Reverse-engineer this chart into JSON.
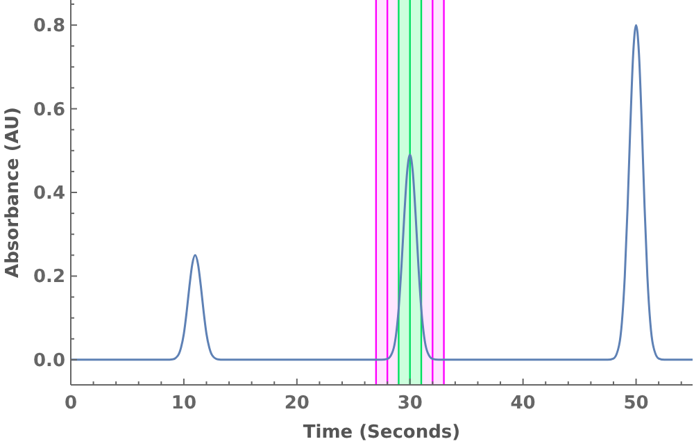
{
  "chart_data": {
    "type": "line",
    "xlabel": "Time  (Seconds)",
    "ylabel": "Absorbance  (AU)",
    "x": [
      0,
      8.5,
      9,
      9.5,
      9.75,
      10,
      10.25,
      10.5,
      10.75,
      11,
      11.25,
      11.5,
      11.75,
      12,
      12.25,
      12.5,
      13,
      13.5,
      27.5,
      28,
      28.5,
      28.75,
      29,
      29.25,
      29.5,
      29.75,
      30,
      30.25,
      30.5,
      30.75,
      31,
      31.25,
      31.5,
      32,
      32.5,
      47.5,
      48,
      48.5,
      48.75,
      49,
      49.25,
      49.5,
      49.75,
      50,
      50.25,
      50.5,
      50.75,
      51,
      51.25,
      51.5,
      52,
      52.5,
      55
    ],
    "series": [
      {
        "color": "#5e81b5",
        "values": [
          0,
          0,
          0.001,
          0.011,
          0.029,
          0.062,
          0.115,
          0.177,
          0.229,
          0.25,
          0.229,
          0.177,
          0.115,
          0.062,
          0.029,
          0.011,
          0.001,
          0,
          0,
          0.002,
          0.022,
          0.056,
          0.122,
          0.224,
          0.346,
          0.449,
          0.49,
          0.449,
          0.346,
          0.224,
          0.122,
          0.056,
          0.022,
          0.002,
          0,
          0,
          0.003,
          0.035,
          0.091,
          0.199,
          0.366,
          0.566,
          0.734,
          0.8,
          0.734,
          0.566,
          0.366,
          0.199,
          0.091,
          0.035,
          0.003,
          0,
          0
        ]
      }
    ],
    "xlim": [
      0,
      55
    ],
    "ylim": [
      -0.06,
      0.86
    ],
    "xticks": [
      0,
      {
        "value": 2,
        "label": null
      },
      {
        "value": 4,
        "label": null
      },
      {
        "value": 6,
        "label": null
      },
      {
        "value": 8,
        "label": null
      },
      10,
      {
        "value": 12,
        "label": null
      },
      {
        "value": 14,
        "label": null
      },
      {
        "value": 16,
        "label": null
      },
      {
        "value": 18,
        "label": null
      },
      20,
      {
        "value": 22,
        "label": null
      },
      {
        "value": 24,
        "label": null
      },
      {
        "value": 26,
        "label": null
      },
      {
        "value": 28,
        "label": null
      },
      30,
      {
        "value": 32,
        "label": null
      },
      {
        "value": 34,
        "label": null
      },
      {
        "value": 36,
        "label": null
      },
      {
        "value": 38,
        "label": null
      },
      40,
      {
        "value": 42,
        "label": null
      },
      {
        "value": 44,
        "label": null
      },
      {
        "value": 46,
        "label": null
      },
      {
        "value": 48,
        "label": null
      },
      50,
      {
        "value": 52,
        "label": null
      },
      {
        "value": 54,
        "label": null
      }
    ],
    "yticks": [
      {
        "value": 0,
        "label": "0.0"
      },
      {
        "value": 0.05,
        "label": null
      },
      {
        "value": 0.1,
        "label": null
      },
      {
        "value": 0.15,
        "label": null
      },
      {
        "value": 0.2,
        "label": "0.2"
      },
      {
        "value": 0.25,
        "label": null
      },
      {
        "value": 0.3,
        "label": null
      },
      {
        "value": 0.35,
        "label": null
      },
      {
        "value": 0.4,
        "label": "0.4"
      },
      {
        "value": 0.45,
        "label": null
      },
      {
        "value": 0.5,
        "label": null
      },
      {
        "value": 0.55,
        "label": null
      },
      {
        "value": 0.6,
        "label": "0.6"
      },
      {
        "value": 0.65,
        "label": null
      },
      {
        "value": 0.7,
        "label": null
      },
      {
        "value": 0.75,
        "label": null
      },
      {
        "value": 0.8,
        "label": "0.8"
      },
      {
        "value": 0.85,
        "label": null
      }
    ],
    "grid": false,
    "marker": "none",
    "line_style": "solid",
    "bands": [
      {
        "axis": "x",
        "from": 27,
        "to": 33,
        "color": "#ffe6ff"
      },
      {
        "axis": "x",
        "from": 29,
        "to": 31,
        "color": "#ccffdd"
      }
    ],
    "ref_lines": [
      {
        "axis": "x",
        "value": 27,
        "color": "#ff00ff"
      },
      {
        "axis": "x",
        "value": 28,
        "color": "#ff00ff"
      },
      {
        "axis": "x",
        "value": 32,
        "color": "#ff00ff"
      },
      {
        "axis": "x",
        "value": 33,
        "color": "#ff00ff"
      },
      {
        "axis": "x",
        "value": 29,
        "color": "#00e060"
      },
      {
        "axis": "x",
        "value": 30,
        "color": "#00e060"
      },
      {
        "axis": "x",
        "value": 31,
        "color": "#00e060"
      }
    ]
  }
}
